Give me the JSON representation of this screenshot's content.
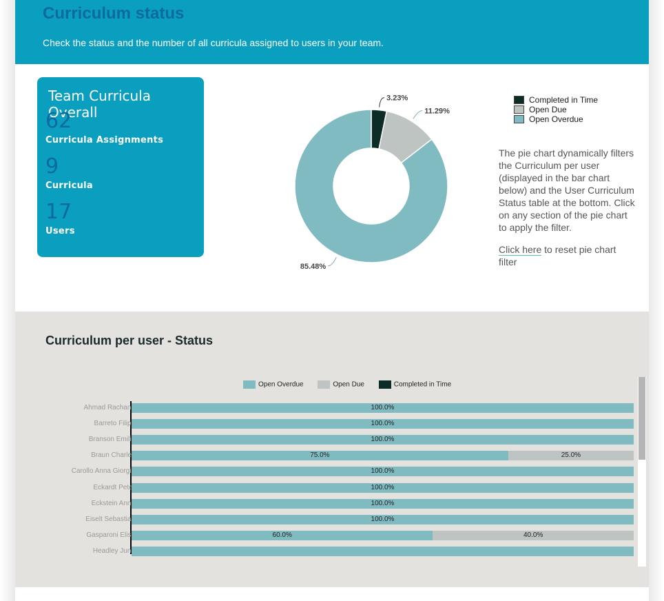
{
  "header": {
    "title": "Curriculum status",
    "subtitle": "Check the status and the number of all curricula assigned to users in your team."
  },
  "overview": {
    "title": "Team Curricula Overall",
    "stats": [
      {
        "value": "62",
        "label": "Curricula Assignments"
      },
      {
        "value": "9",
        "label": "Curricula"
      },
      {
        "value": "17",
        "label": "Users"
      }
    ]
  },
  "pie": {
    "legend": [
      {
        "label": "Completed in Time",
        "color": "#0d2b27"
      },
      {
        "label": "Open Due",
        "color": "#bec4c2"
      },
      {
        "label": "Open Overdue",
        "color": "#7fbbc0"
      }
    ],
    "description": "The pie chart dynamically filters the Curriculum per user (displayed in the bar chart below) and the User Curriculum Status table at the bottom. Click on any section of the pie chart to apply the filter.",
    "reset_link": "Click here",
    "reset_rest": "to reset pie chart filter"
  },
  "bar_section": {
    "title": "Curriculum per user - Status",
    "legend": [
      {
        "label": "Open Overdue",
        "color": "#7fbbc0"
      },
      {
        "label": "Open Due",
        "color": "#bec4c2"
      },
      {
        "label": "Completed in Time",
        "color": "#0d2b27"
      }
    ]
  },
  "chart_data": [
    {
      "type": "pie",
      "categories": [
        "Completed in Time",
        "Open Due",
        "Open Overdue"
      ],
      "values": [
        3.23,
        11.29,
        85.48
      ],
      "labels": [
        "3.23%",
        "11.29%",
        "85.48%"
      ],
      "colors": [
        "#0d2b27",
        "#bec4c2",
        "#7fbbc0"
      ],
      "donut": true,
      "legend_position": "right"
    },
    {
      "type": "bar",
      "orientation": "horizontal",
      "stacked": true,
      "categories": [
        "Ahmad Rachana",
        "Barreto Filipe",
        "Branson Emilio",
        "Braun Charles",
        "Carollo Anna Giorgia",
        "Eckardt Peter",
        "Eckstein Anne",
        "Eiselt Sebastian",
        "Gasparoni Elisa",
        "Headley June"
      ],
      "series": [
        {
          "name": "Open Overdue",
          "values": [
            100,
            100,
            100,
            75,
            100,
            100,
            100,
            100,
            60,
            100
          ],
          "labels": [
            "100.0%",
            "100.0%",
            "100.0%",
            "75.0%",
            "100.0%",
            "100.0%",
            "100.0%",
            "100.0%",
            "60.0%",
            ""
          ]
        },
        {
          "name": "Open Due",
          "values": [
            0,
            0,
            0,
            25,
            0,
            0,
            0,
            0,
            40,
            0
          ],
          "labels": [
            "",
            "",
            "",
            "25.0%",
            "",
            "",
            "",
            "",
            "40.0%",
            ""
          ]
        },
        {
          "name": "Completed in Time",
          "values": [
            0,
            0,
            0,
            0,
            0,
            0,
            0,
            0,
            0,
            0
          ]
        }
      ],
      "xlim": [
        0,
        100
      ],
      "legend_position": "top"
    }
  ]
}
